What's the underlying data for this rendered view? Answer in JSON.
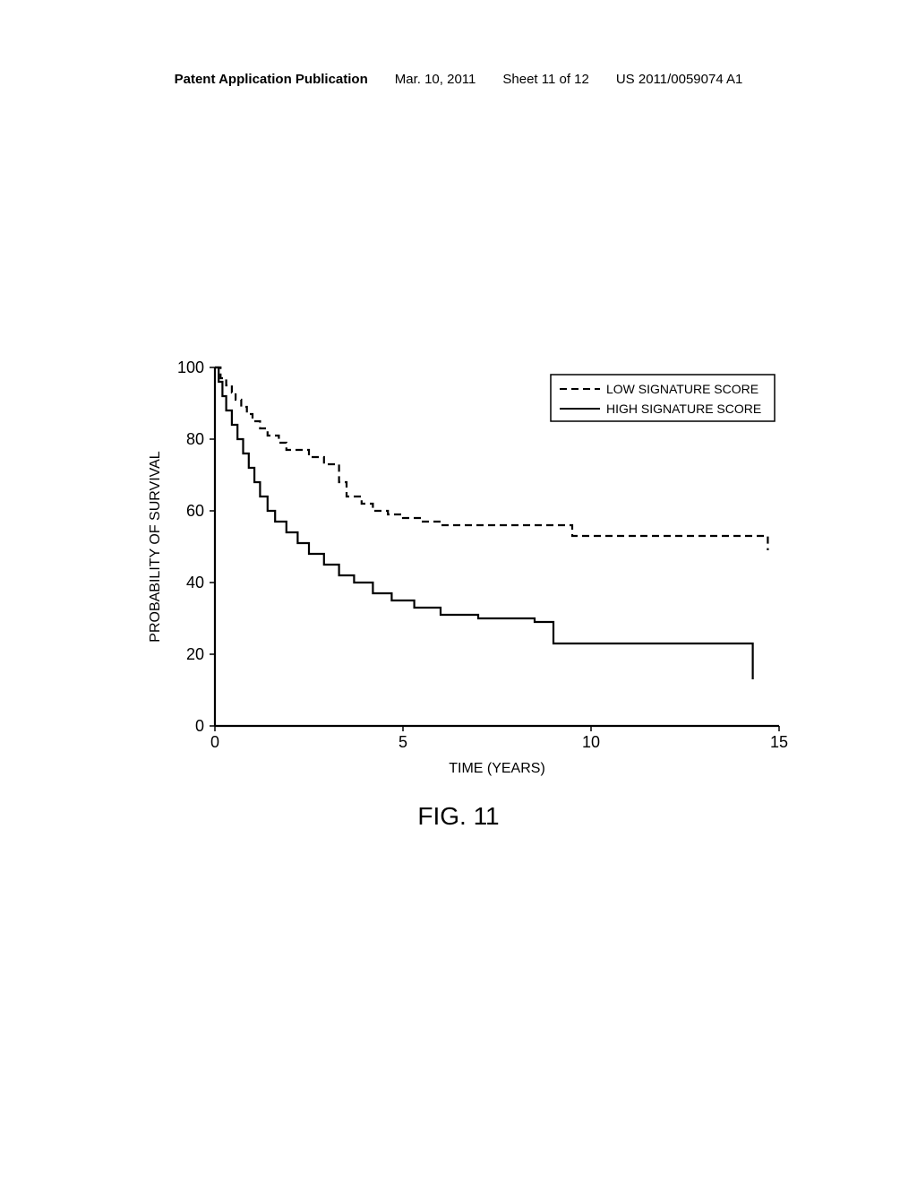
{
  "header": {
    "publication_label": "Patent Application Publication",
    "date": "Mar. 10, 2011",
    "sheet": "Sheet 11 of 12",
    "pub_number": "US 2011/0059074 A1"
  },
  "figure": {
    "caption": "FIG. 11",
    "ylabel": "PROBABILITY OF SURVIVAL",
    "xlabel": "TIME (YEARS)",
    "legend": {
      "low": "LOW SIGNATURE SCORE",
      "high": "HIGH SIGNATURE SCORE"
    },
    "chart": {
      "type": "survival-curve",
      "xlim": [
        0,
        15
      ],
      "ylim": [
        0,
        100
      ],
      "xticks": [
        0,
        5,
        10,
        15
      ],
      "yticks": [
        0,
        20,
        40,
        60,
        80,
        100
      ],
      "axis_color": "#000000",
      "line_color": "#000000",
      "line_width": 2.2,
      "background_color": "#ffffff",
      "tick_fontsize": 18,
      "label_fontsize": 16,
      "legend_fontsize": 14,
      "low_dash": "8,5",
      "low_series": [
        [
          0,
          100
        ],
        [
          0.15,
          100
        ],
        [
          0.15,
          97
        ],
        [
          0.3,
          97
        ],
        [
          0.3,
          95
        ],
        [
          0.45,
          95
        ],
        [
          0.45,
          93
        ],
        [
          0.55,
          93
        ],
        [
          0.55,
          91
        ],
        [
          0.7,
          91
        ],
        [
          0.7,
          89
        ],
        [
          0.85,
          89
        ],
        [
          0.85,
          87
        ],
        [
          1.0,
          87
        ],
        [
          1.0,
          85
        ],
        [
          1.2,
          85
        ],
        [
          1.2,
          83
        ],
        [
          1.4,
          83
        ],
        [
          1.4,
          81
        ],
        [
          1.7,
          81
        ],
        [
          1.7,
          79
        ],
        [
          1.9,
          79
        ],
        [
          1.9,
          77
        ],
        [
          2.5,
          77
        ],
        [
          2.5,
          75
        ],
        [
          2.9,
          75
        ],
        [
          2.9,
          73
        ],
        [
          3.3,
          73
        ],
        [
          3.3,
          68
        ],
        [
          3.5,
          68
        ],
        [
          3.5,
          64
        ],
        [
          3.9,
          64
        ],
        [
          3.9,
          62
        ],
        [
          4.2,
          62
        ],
        [
          4.2,
          60
        ],
        [
          4.6,
          60
        ],
        [
          4.6,
          59
        ],
        [
          5.0,
          59
        ],
        [
          5.0,
          58
        ],
        [
          5.5,
          58
        ],
        [
          5.5,
          57
        ],
        [
          6.0,
          57
        ],
        [
          6.0,
          56
        ],
        [
          9.5,
          56
        ],
        [
          9.5,
          53
        ],
        [
          14.7,
          53
        ],
        [
          14.7,
          49
        ]
      ],
      "high_series": [
        [
          0,
          100
        ],
        [
          0.1,
          100
        ],
        [
          0.1,
          96
        ],
        [
          0.2,
          96
        ],
        [
          0.2,
          92
        ],
        [
          0.3,
          92
        ],
        [
          0.3,
          88
        ],
        [
          0.45,
          88
        ],
        [
          0.45,
          84
        ],
        [
          0.6,
          84
        ],
        [
          0.6,
          80
        ],
        [
          0.75,
          80
        ],
        [
          0.75,
          76
        ],
        [
          0.9,
          76
        ],
        [
          0.9,
          72
        ],
        [
          1.05,
          72
        ],
        [
          1.05,
          68
        ],
        [
          1.2,
          68
        ],
        [
          1.2,
          64
        ],
        [
          1.4,
          64
        ],
        [
          1.4,
          60
        ],
        [
          1.6,
          60
        ],
        [
          1.6,
          57
        ],
        [
          1.9,
          57
        ],
        [
          1.9,
          54
        ],
        [
          2.2,
          54
        ],
        [
          2.2,
          51
        ],
        [
          2.5,
          51
        ],
        [
          2.5,
          48
        ],
        [
          2.9,
          48
        ],
        [
          2.9,
          45
        ],
        [
          3.3,
          45
        ],
        [
          3.3,
          42
        ],
        [
          3.7,
          42
        ],
        [
          3.7,
          40
        ],
        [
          4.2,
          40
        ],
        [
          4.2,
          37
        ],
        [
          4.7,
          37
        ],
        [
          4.7,
          35
        ],
        [
          5.3,
          35
        ],
        [
          5.3,
          33
        ],
        [
          6.0,
          33
        ],
        [
          6.0,
          31
        ],
        [
          7.0,
          31
        ],
        [
          7.0,
          30
        ],
        [
          8.5,
          30
        ],
        [
          8.5,
          29
        ],
        [
          9.0,
          29
        ],
        [
          9.0,
          23
        ],
        [
          14.3,
          23
        ],
        [
          14.3,
          19
        ],
        [
          14.3,
          13
        ]
      ]
    }
  }
}
